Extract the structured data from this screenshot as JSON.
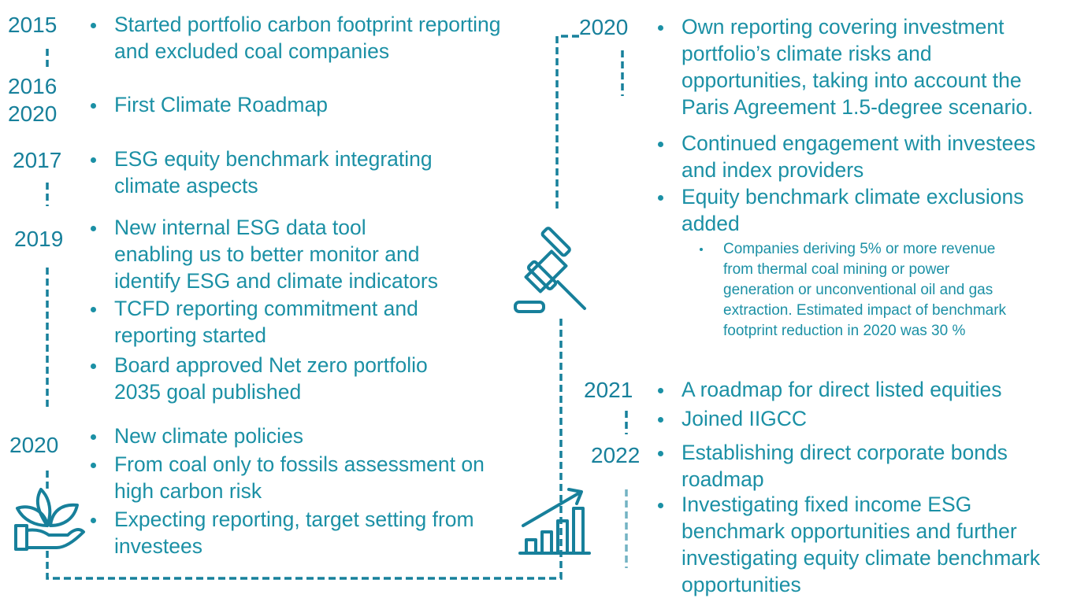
{
  "left": [
    {
      "years": [
        "2015"
      ],
      "bullets": [
        [
          "Started portfolio carbon footprint reporting",
          "and excluded coal companies"
        ]
      ]
    },
    {
      "years": [
        "2016",
        "2020"
      ],
      "bullets": [
        [
          "First Climate Roadmap"
        ]
      ]
    },
    {
      "years": [
        "2017"
      ],
      "bullets": [
        [
          "ESG equity benchmark integrating",
          "climate aspects"
        ]
      ]
    },
    {
      "years": [
        "2019"
      ],
      "bullets": [
        [
          "New internal ESG data tool",
          "enabling us to better monitor and",
          "identify ESG and climate indicators"
        ],
        [
          "TCFD reporting commitment and",
          "reporting started"
        ],
        [
          "Board approved Net zero portfolio",
          "2035 goal published"
        ]
      ]
    },
    {
      "years": [
        "2020"
      ],
      "bullets": [
        [
          "New climate policies"
        ],
        [
          "From coal only to fossils assessment on",
          "high carbon risk"
        ],
        [
          "Expecting reporting, target setting from",
          "investees"
        ]
      ]
    }
  ],
  "right": [
    {
      "years": [
        "2020"
      ],
      "bullets": [
        [
          "Own reporting covering investment",
          "portfolio’s climate risks and",
          "opportunities, taking into account the",
          "Paris Agreement 1.5-degree scenario."
        ],
        [
          "Continued engagement with investees",
          "and index providers"
        ],
        [
          "Equity benchmark climate exclusions",
          "added"
        ]
      ],
      "sub_bullets": [
        [
          "Companies deriving 5% or more revenue",
          "from thermal coal mining or power",
          "generation or unconventional oil and gas",
          "extraction. Estimated impact of benchmark",
          "footprint reduction in 2020 was 30 %"
        ]
      ]
    },
    {
      "years": [
        "2021"
      ],
      "bullets": [
        [
          "A roadmap for direct listed equities"
        ],
        [
          "Joined IIGCC"
        ]
      ]
    },
    {
      "years": [
        "2022"
      ],
      "bullets": [
        [
          "Establishing direct corporate bonds",
          "roadmap"
        ],
        [
          "Investigating fixed income ESG",
          "benchmark opportunities and further",
          "investigating equity climate benchmark",
          "opportunities"
        ]
      ]
    }
  ]
}
